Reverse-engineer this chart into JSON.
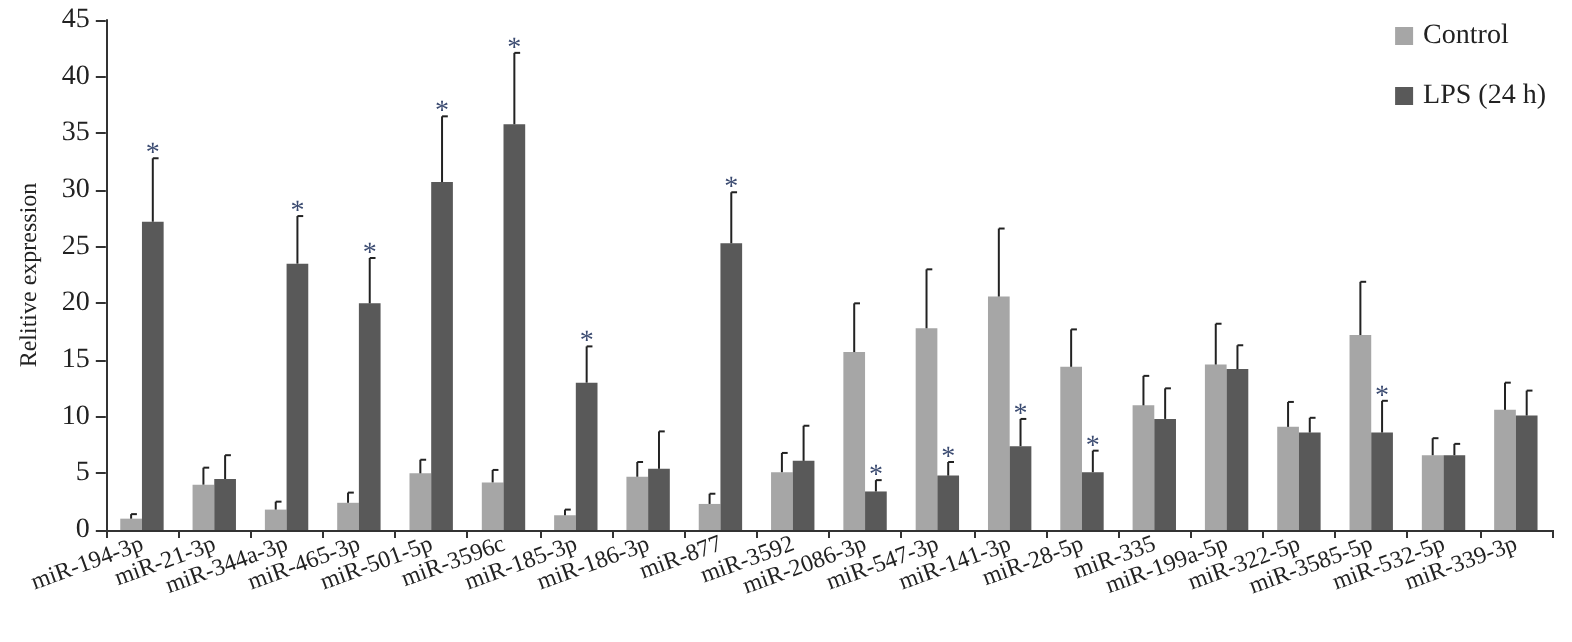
{
  "chart_data": {
    "type": "bar",
    "ylabel": "Relitive expression",
    "categories": [
      "miR-194-3p",
      "miR-21-3p",
      "miR-344a-3p",
      "miR-465-3p",
      "miR-501-5p",
      "miR-3596c",
      "miR-185-3p",
      "miR-186-3p",
      "miR-877",
      "miR-3592",
      "miR-2086-3p",
      "miR-547-3p",
      "miR-141-3p",
      "miR-28-5p",
      "miR-335",
      "miR-199a-5p",
      "miR-322-5p",
      "miR-3585-5p",
      "miR-532-5p",
      "miR-339-3p"
    ],
    "series": [
      {
        "name": "Control",
        "color": "#a6a6a6",
        "values": [
          1.0,
          4.0,
          1.8,
          2.4,
          5.0,
          4.2,
          1.3,
          4.7,
          2.3,
          5.1,
          15.7,
          17.8,
          20.6,
          14.4,
          11.0,
          14.6,
          9.1,
          17.2,
          6.6,
          10.6
        ],
        "errors": [
          [
            1.0,
            1.4
          ],
          [
            4.0,
            5.5
          ],
          [
            1.8,
            2.5
          ],
          [
            2.4,
            3.3
          ],
          [
            5.0,
            6.2
          ],
          [
            4.2,
            5.3
          ],
          [
            1.3,
            1.8
          ],
          [
            4.7,
            6.0
          ],
          [
            2.3,
            3.2
          ],
          [
            5.1,
            6.8
          ],
          [
            15.7,
            20.0
          ],
          [
            17.8,
            23.0
          ],
          [
            20.6,
            26.6
          ],
          [
            14.4,
            17.7
          ],
          [
            11.0,
            13.6
          ],
          [
            14.6,
            18.2
          ],
          [
            9.1,
            11.3
          ],
          [
            17.2,
            21.9
          ],
          [
            6.6,
            8.1
          ],
          [
            10.6,
            13.0
          ]
        ]
      },
      {
        "name": "LPS (24 h)",
        "color": "#595959",
        "value_labels": [
          "*",
          null,
          "*",
          "*",
          "*",
          "*",
          "*",
          null,
          "*",
          null,
          "*",
          "*",
          "*",
          "*",
          null,
          null,
          null,
          "*",
          null,
          null
        ],
        "values": [
          27.2,
          4.5,
          23.5,
          20.0,
          30.7,
          35.8,
          13.0,
          5.4,
          25.3,
          6.1,
          3.4,
          4.8,
          7.4,
          5.1,
          9.8,
          14.2,
          8.6,
          8.6,
          6.6,
          10.1
        ],
        "errors": [
          [
            27.2,
            32.8
          ],
          [
            4.5,
            6.6
          ],
          [
            23.5,
            27.7
          ],
          [
            20.0,
            24.0
          ],
          [
            30.7,
            36.5
          ],
          [
            35.8,
            42.1
          ],
          [
            13.0,
            16.2
          ],
          [
            5.4,
            8.7
          ],
          [
            25.3,
            29.8
          ],
          [
            6.1,
            9.2
          ],
          [
            3.4,
            4.4
          ],
          [
            4.8,
            6.0
          ],
          [
            7.4,
            9.8
          ],
          [
            5.1,
            7.0
          ],
          [
            9.8,
            12.5
          ],
          [
            14.2,
            16.3
          ],
          [
            8.6,
            9.9
          ],
          [
            8.6,
            11.4
          ],
          [
            6.6,
            7.6
          ],
          [
            10.1,
            12.3
          ]
        ]
      }
    ],
    "ylim": [
      0,
      45
    ],
    "yticks": [
      0,
      5,
      10,
      15,
      20,
      25,
      30,
      35,
      40,
      45
    ],
    "grid": false,
    "legend": "top right"
  }
}
